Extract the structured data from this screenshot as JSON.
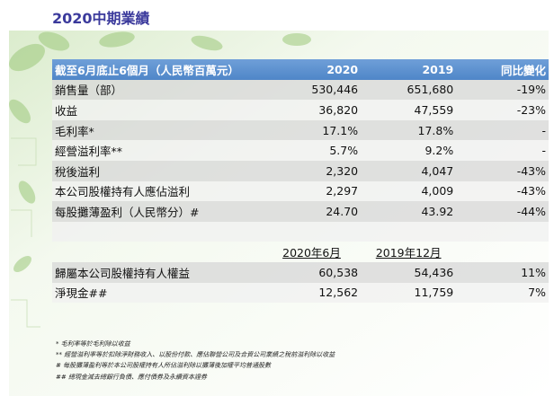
{
  "header": {
    "title": "2020中期業績"
  },
  "table": {
    "columns": [
      "截至6月底止6個月（人民幣百萬元）",
      "2020",
      "2019",
      "同比變化"
    ],
    "rows": [
      [
        "銷售量（部）",
        "530,446",
        "651,680",
        "-19%"
      ],
      [
        "收益",
        "36,820",
        "47,559",
        "-23%"
      ],
      [
        "毛利率*",
        "17.1%",
        "17.8%",
        "-"
      ],
      [
        "經營溢利率**",
        "5.7%",
        "9.2%",
        "-"
      ],
      [
        "稅後溢利",
        "2,320",
        "4,047",
        "-43%"
      ],
      [
        "本公司股權持有人應佔溢利",
        "2,297",
        "4,009",
        "-43%"
      ],
      [
        "每股攤薄盈利（人民幣分）#",
        "24.70",
        "43.92",
        "-44%"
      ]
    ],
    "balance_columns": [
      "2020年6月",
      "2019年12月"
    ],
    "balance_rows": [
      [
        "歸屬本公司股權持有人權益",
        "60,538",
        "54,436",
        "11%"
      ],
      [
        "淨現金##",
        "12,562",
        "11,759",
        "7%"
      ]
    ]
  },
  "footnotes": [
    "*  毛利率等於毛利除以收益",
    "**  經營溢利率等於扣除淨財務收入、以股份付款、應佔聯營公司及合資公司業績之稅前溢利除以收益",
    "#   每股攤薄盈利等於本公司股權持有人所佔溢利除以攤薄後加權平均普通股數",
    "##  總現金減去總銀行負債、應付債券及永續資本證券"
  ]
}
